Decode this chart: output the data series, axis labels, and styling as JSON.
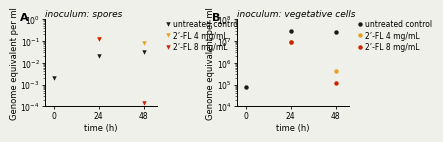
{
  "panel_A": {
    "title": "inoculum: spores",
    "xlabel": "time (h)",
    "ylabel": "Genome equivalent per ml",
    "xlim": [
      -5,
      55
    ],
    "ylim_log": [
      -4,
      0
    ],
    "xticks": [
      0,
      24,
      48
    ],
    "series": {
      "untreated": {
        "label": "untreated control",
        "color": "#1a1a1a",
        "marker": "v",
        "x": [
          0,
          24,
          48
        ],
        "y": [
          0.002,
          0.02,
          0.03
        ]
      },
      "fl4": {
        "label": "2’-FL 4 mg/mL",
        "color": "#e8a020",
        "marker": "v",
        "x": [
          24,
          48
        ],
        "y": [
          0.13,
          0.08
        ]
      },
      "fl8": {
        "label": "2’-FL 8 mg/mL",
        "color": "#cc2200",
        "marker": "v",
        "x": [
          24,
          48
        ],
        "y": [
          0.13,
          0.00015
        ]
      }
    }
  },
  "panel_B": {
    "title": "inoculum: vegetative cells",
    "xlabel": "time (h)",
    "ylabel": "Genome equivalent per ml",
    "xlim": [
      -5,
      55
    ],
    "ylim_log": [
      4,
      8
    ],
    "xticks": [
      0,
      24,
      48
    ],
    "series": {
      "untreated": {
        "label": "untreated control",
        "color": "#1a1a1a",
        "marker": "o",
        "x": [
          0,
          24,
          48
        ],
        "y": [
          80000.0,
          30000000.0,
          25000000.0
        ]
      },
      "fl4": {
        "label": "2’-FL 4 mg/mL",
        "color": "#e8a020",
        "marker": "o",
        "x": [
          24,
          48
        ],
        "y": [
          9000000.0,
          400000.0
        ]
      },
      "fl8": {
        "label": "2’-FL 8 mg/mL",
        "color": "#cc2200",
        "marker": "o",
        "x": [
          24,
          48
        ],
        "y": [
          9000000.0,
          120000.0
        ]
      }
    }
  },
  "background_color": "#f0f0eb",
  "panel_label_fontsize": 8,
  "title_fontsize": 6.5,
  "tick_fontsize": 5.5,
  "label_fontsize": 6,
  "legend_fontsize": 5.5
}
